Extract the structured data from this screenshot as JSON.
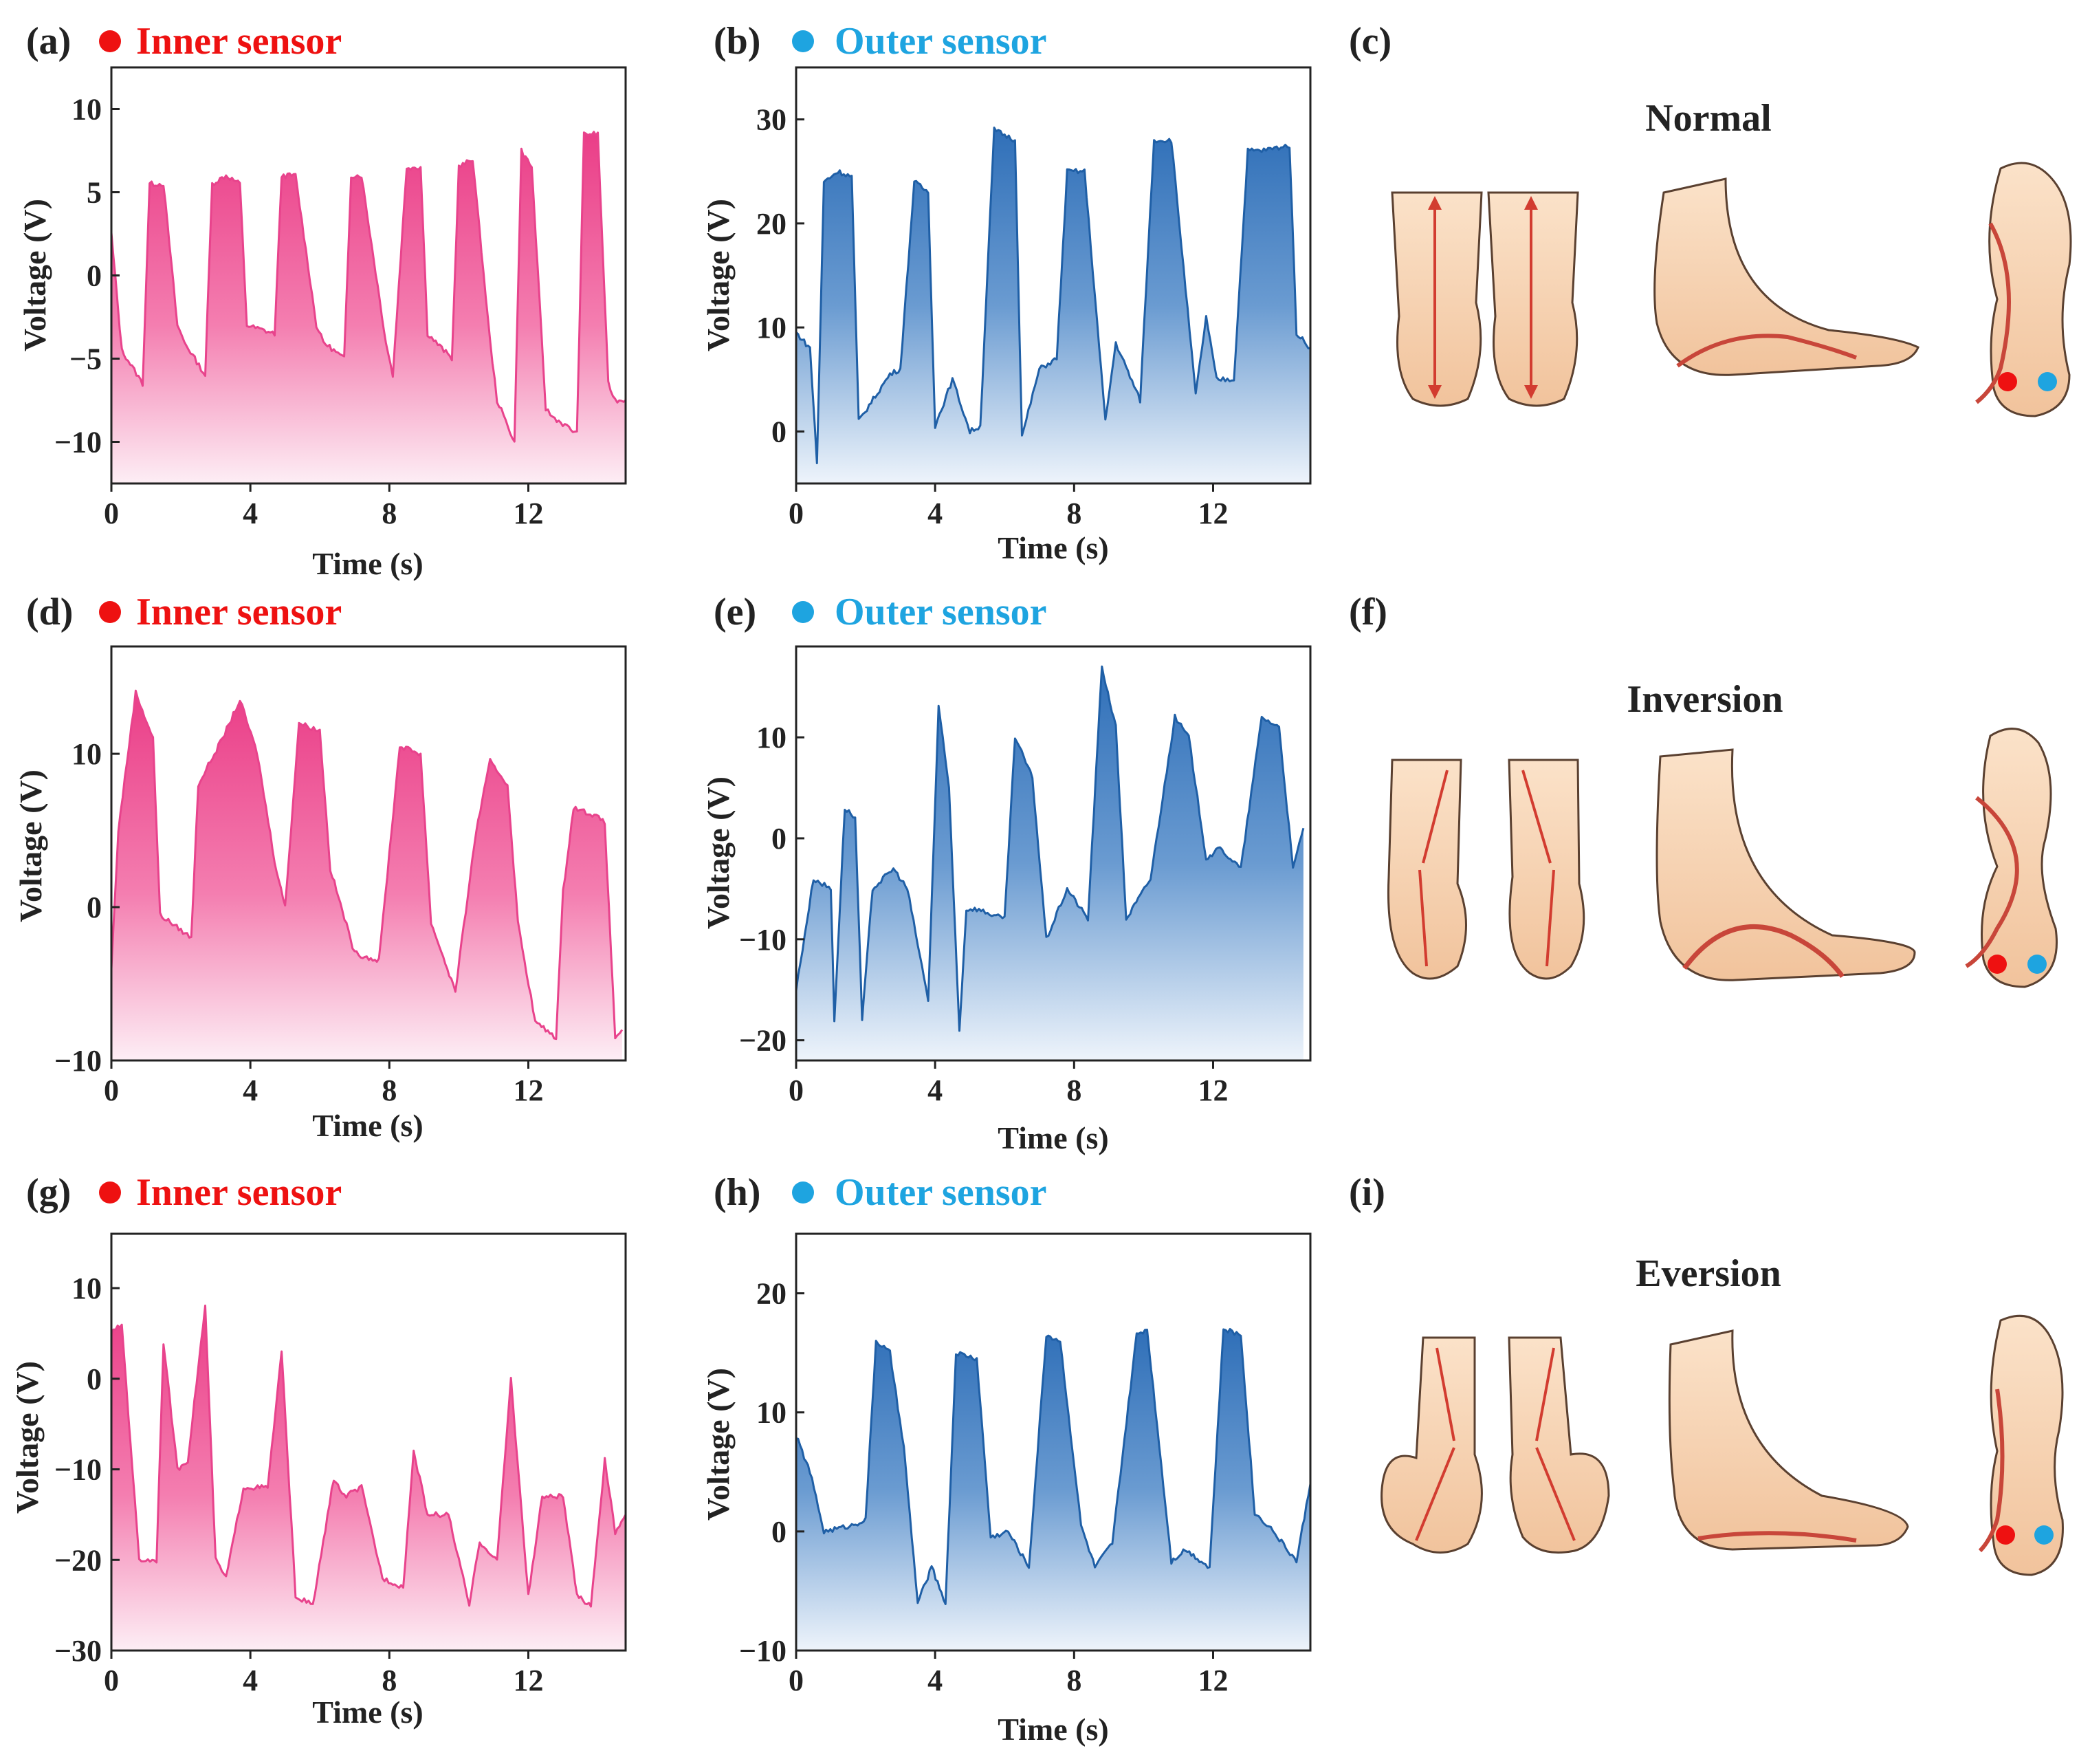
{
  "colors": {
    "inner": "#e51e7a",
    "inner_line": "#e8438c",
    "outer": "#1f5fa6",
    "outer_fill": "#3a78bd",
    "inner_dot": "#ee1111",
    "outer_dot": "#1ea4e0",
    "inner_text": "#ee1111",
    "outer_text": "#1ea4e0",
    "skin": "#f7d5b4",
    "skin_dark": "#e9b48f",
    "outline": "#3a2a22",
    "arrow": "#d23c30"
  },
  "panels": [
    {
      "id": "a",
      "label": "(a)",
      "sensor": "Inner sensor",
      "kind": "inner",
      "xlabel": "Time (s)",
      "ylabel": "Voltage (V)",
      "xticks": [
        0,
        4,
        8,
        12
      ],
      "yticks": [
        10,
        5,
        0,
        -5,
        -10
      ],
      "ylim": [
        -12.5,
        12.5
      ],
      "xlim": [
        0,
        14.8
      ]
    },
    {
      "id": "b",
      "label": "(b)",
      "sensor": "Outer sensor",
      "kind": "outer",
      "xlabel": "Time (s)",
      "ylabel": "Voltage (V)",
      "xticks": [
        0,
        4,
        8,
        12
      ],
      "yticks": [
        30,
        20,
        10,
        0
      ],
      "ylim": [
        -5,
        35
      ],
      "xlim": [
        0,
        14.8
      ]
    },
    {
      "id": "d",
      "label": "(d)",
      "sensor": "Inner sensor",
      "kind": "inner",
      "xlabel": "Time (s)",
      "ylabel": "Voltage (V)",
      "xticks": [
        0,
        4,
        8,
        12
      ],
      "yticks": [
        10,
        0,
        -10
      ],
      "ylim": [
        -10,
        17
      ],
      "xlim": [
        0,
        14.8
      ]
    },
    {
      "id": "e",
      "label": "(e)",
      "sensor": "Outer sensor",
      "kind": "outer",
      "xlabel": "Time (s)",
      "ylabel": "Voltage (V)",
      "xticks": [
        0,
        4,
        8,
        12
      ],
      "yticks": [
        10,
        0,
        -10,
        -20
      ],
      "ylim": [
        -22,
        19
      ],
      "xlim": [
        0,
        14.8
      ]
    },
    {
      "id": "g",
      "label": "(g)",
      "sensor": "Inner sensor",
      "kind": "inner",
      "xlabel": "Time (s)",
      "ylabel": "Voltage (V)",
      "xticks": [
        0,
        4,
        8,
        12
      ],
      "yticks": [
        10,
        0,
        -10,
        -20,
        -30
      ],
      "ylim": [
        -30,
        16
      ],
      "xlim": [
        0,
        14.8
      ]
    },
    {
      "id": "h",
      "label": "(h)",
      "sensor": "Outer sensor",
      "kind": "outer",
      "xlabel": "Time (s)",
      "ylabel": "Voltage (V)",
      "xticks": [
        0,
        4,
        8,
        12
      ],
      "yticks": [
        20,
        10,
        0,
        -10
      ],
      "ylim": [
        -10,
        25
      ],
      "xlim": [
        0,
        14.8
      ]
    }
  ],
  "scenes": [
    {
      "id": "c",
      "label": "(c)",
      "title": "Normal"
    },
    {
      "id": "f",
      "label": "(f)",
      "title": "Inversion"
    },
    {
      "id": "i",
      "label": "(i)",
      "title": "Eversion"
    }
  ],
  "chart_data": [
    {
      "id": "a",
      "type": "area",
      "title": "Inner sensor",
      "xlabel": "Time (s)",
      "ylabel": "Voltage (V)",
      "xlim": [
        0,
        14.8
      ],
      "ylim": [
        -12.5,
        12.5
      ],
      "x": [
        0,
        0.3,
        0.9,
        1.1,
        1.5,
        1.9,
        2.1,
        2.7,
        2.9,
        3.3,
        3.7,
        3.9,
        4.7,
        4.9,
        5.3,
        5.9,
        6.1,
        6.7,
        6.9,
        7.2,
        7.9,
        8.1,
        8.5,
        8.9,
        9.1,
        9.8,
        10.0,
        10.4,
        10.9,
        11.1,
        11.6,
        11.8,
        12.1,
        12.5,
        12.7,
        13.4,
        13.6,
        14.0,
        14.3,
        14.5,
        14.8
      ],
      "values": [
        2.5,
        -4.5,
        -6.5,
        5.5,
        5.5,
        -3,
        -4,
        -6,
        5.5,
        6,
        5.5,
        -3,
        -3.5,
        6,
        6,
        -3,
        -4,
        -5,
        6,
        6,
        -4,
        -6,
        6.5,
        6.5,
        -3.5,
        -5,
        6.5,
        7,
        -4,
        -7.5,
        -10,
        7.5,
        6.5,
        -8,
        -8.5,
        -9.5,
        8.5,
        8.5,
        -6.5,
        -7.5,
        -7.5
      ]
    },
    {
      "id": "b",
      "type": "area",
      "title": "Outer sensor",
      "xlabel": "Time (s)",
      "ylabel": "Voltage (V)",
      "xlim": [
        0,
        14.8
      ],
      "ylim": [
        -5,
        35
      ],
      "x": [
        0,
        0.4,
        0.6,
        0.8,
        1.2,
        1.6,
        1.8,
        2.7,
        3.0,
        3.4,
        3.8,
        4.0,
        4.5,
        5.0,
        5.3,
        5.7,
        6.3,
        6.5,
        7.0,
        7.5,
        7.8,
        8.3,
        8.9,
        9.2,
        9.9,
        10.3,
        10.8,
        11.5,
        11.8,
        12.1,
        12.6,
        13.0,
        13.4,
        14.2,
        14.4,
        14.8
      ],
      "values": [
        9.5,
        8,
        -3,
        24,
        25,
        24.5,
        1,
        5.5,
        6,
        24,
        23,
        0.5,
        5,
        0,
        0.5,
        29,
        28,
        -0.5,
        6,
        7,
        25,
        25,
        1,
        8.5,
        3,
        28,
        28,
        3.5,
        11,
        5,
        5,
        27,
        27,
        27.5,
        9.5,
        8
      ]
    },
    {
      "id": "d",
      "type": "area",
      "title": "Inner sensor",
      "xlabel": "Time (s)",
      "ylabel": "Voltage (V)",
      "xlim": [
        0,
        14.8
      ],
      "ylim": [
        -10,
        17
      ],
      "x": [
        0,
        0.2,
        0.7,
        1.2,
        1.4,
        2.3,
        2.5,
        3.2,
        3.7,
        4.2,
        4.7,
        5.0,
        5.4,
        6.0,
        6.3,
        7.0,
        7.7,
        8.3,
        8.9,
        9.2,
        9.9,
        10.5,
        10.9,
        11.4,
        11.7,
        12.2,
        12.8,
        13.0,
        13.3,
        13.9,
        14.2,
        14.5,
        14.7
      ],
      "values": [
        -4,
        5,
        14,
        11,
        -0.5,
        -2,
        8,
        11,
        13.5,
        10,
        3,
        0,
        12,
        11.5,
        2.5,
        -3,
        -3.5,
        10.5,
        10,
        -1,
        -5.5,
        5,
        9.5,
        8,
        -1,
        -7.5,
        -8.5,
        1,
        6.5,
        6,
        5.5,
        -8.5,
        -8
      ]
    },
    {
      "id": "e",
      "type": "area",
      "title": "Outer sensor",
      "xlabel": "Time (s)",
      "ylabel": "Voltage (V)",
      "xlim": [
        0,
        14.8
      ],
      "ylim": [
        -22,
        19
      ],
      "x": [
        0,
        0.5,
        1.0,
        1.1,
        1.4,
        1.7,
        1.9,
        2.2,
        2.8,
        3.2,
        3.8,
        4.1,
        4.4,
        4.7,
        4.9,
        5.2,
        6.0,
        6.3,
        6.8,
        7.2,
        7.8,
        8.4,
        8.8,
        9.2,
        9.5,
        10.2,
        10.9,
        11.3,
        11.8,
        12.2,
        12.8,
        13.4,
        13.9,
        14.3,
        14.6
      ],
      "values": [
        -15,
        -4,
        -5,
        -18,
        3,
        2,
        -18,
        -5,
        -3,
        -5,
        -16,
        13,
        5,
        -19,
        -7,
        -7,
        -8,
        10,
        6,
        -10,
        -5,
        -8,
        17,
        11,
        -8,
        -4,
        12,
        10,
        -2,
        -1,
        -3,
        12,
        11,
        -3,
        1
      ]
    },
    {
      "id": "g",
      "type": "area",
      "title": "Inner sensor",
      "xlabel": "Time (s)",
      "ylabel": "Voltage (V)",
      "xlim": [
        0,
        14.8
      ],
      "ylim": [
        -30,
        16
      ],
      "x": [
        0,
        0.3,
        0.8,
        1.3,
        1.5,
        1.9,
        2.2,
        2.7,
        3.0,
        3.3,
        3.8,
        4.5,
        4.9,
        5.3,
        5.8,
        6.4,
        6.7,
        7.2,
        7.8,
        8.4,
        8.7,
        9.1,
        9.7,
        10.3,
        10.6,
        11.1,
        11.5,
        12.0,
        12.4,
        13.0,
        13.4,
        13.8,
        14.2,
        14.5,
        14.8
      ],
      "values": [
        5,
        6,
        -20,
        -20,
        4,
        -10,
        -9,
        8,
        -20,
        -22,
        -12,
        -12,
        3,
        -24,
        -25,
        -11,
        -13,
        -12,
        -22,
        -23,
        -8,
        -15,
        -15,
        -25,
        -18,
        -20,
        0,
        -24,
        -13,
        -13,
        -24,
        -25,
        -9,
        -17,
        -15
      ]
    },
    {
      "id": "h",
      "type": "area",
      "title": "Outer sensor",
      "xlabel": "Time (s)",
      "ylabel": "Voltage (V)",
      "xlim": [
        0,
        14.8
      ],
      "ylim": [
        -10,
        25
      ],
      "x": [
        0,
        0.4,
        0.8,
        1.6,
        2.0,
        2.3,
        2.7,
        3.1,
        3.5,
        3.9,
        4.3,
        4.6,
        5.2,
        5.6,
        6.1,
        6.7,
        7.2,
        7.6,
        8.2,
        8.6,
        9.1,
        9.8,
        10.1,
        10.8,
        11.2,
        11.9,
        12.3,
        12.8,
        13.2,
        13.6,
        14.4,
        14.8
      ],
      "values": [
        8,
        5,
        0,
        0.5,
        1,
        16,
        15,
        7,
        -6,
        -3,
        -6,
        15,
        14.5,
        -0.5,
        0,
        -3,
        16.5,
        16,
        0.5,
        -3,
        -1,
        16.5,
        17,
        -2.5,
        -1.5,
        -3,
        17,
        16.5,
        1.5,
        0.5,
        -2.5,
        4
      ]
    }
  ]
}
